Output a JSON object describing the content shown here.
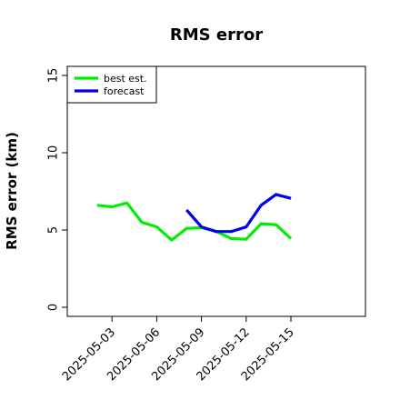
{
  "chart_data": {
    "type": "line",
    "title": "RMS error",
    "xlabel": "",
    "ylabel": "RMS error (km)",
    "xlim": [
      "2025-04-30",
      "2025-05-20"
    ],
    "ylim": [
      0,
      15
    ],
    "yticks": [
      0,
      5,
      10,
      15
    ],
    "xticks": [
      "2025-05-03",
      "2025-05-06",
      "2025-05-09",
      "2025-05-12",
      "2025-05-15"
    ],
    "grid": false,
    "legend_position": "top-left",
    "series": [
      {
        "name": "best est.",
        "color": "#00ee00",
        "points": [
          [
            "2025-05-02",
            6.6
          ],
          [
            "2025-05-03",
            6.5
          ],
          [
            "2025-05-04",
            6.75
          ],
          [
            "2025-05-05",
            5.5
          ],
          [
            "2025-05-06",
            5.2
          ],
          [
            "2025-05-07",
            4.35
          ],
          [
            "2025-05-08",
            5.1
          ],
          [
            "2025-05-09",
            5.15
          ],
          [
            "2025-05-10",
            4.9
          ],
          [
            "2025-05-11",
            4.45
          ],
          [
            "2025-05-12",
            4.4
          ],
          [
            "2025-05-13",
            5.4
          ],
          [
            "2025-05-14",
            5.35
          ],
          [
            "2025-05-15",
            4.45
          ]
        ]
      },
      {
        "name": "forecast",
        "color": "#0000ee",
        "points": [
          [
            "2025-05-08",
            6.3
          ],
          [
            "2025-05-09",
            5.2
          ],
          [
            "2025-05-10",
            4.9
          ],
          [
            "2025-05-11",
            4.9
          ],
          [
            "2025-05-12",
            5.2
          ],
          [
            "2025-05-13",
            6.6
          ],
          [
            "2025-05-14",
            7.3
          ],
          [
            "2025-05-15",
            7.05
          ]
        ]
      }
    ]
  }
}
